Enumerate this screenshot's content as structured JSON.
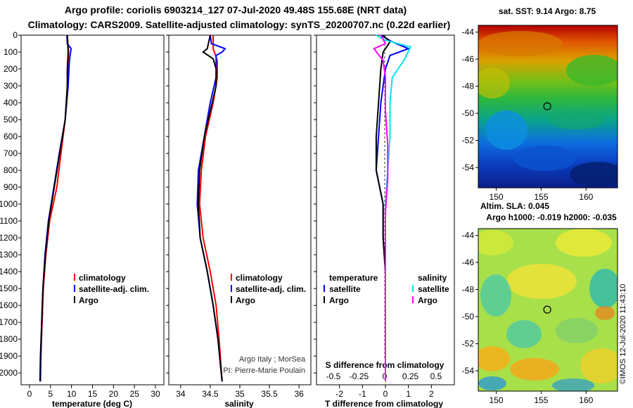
{
  "title_line1": "Argo profile: coriolis 6903214_127 07-Jul-2020 49.48S 155.68E (NRT data)",
  "title_line2": "Climatology: CARS2009. Satellite-adjusted climatology: synTS_20200707.nc (0.22d earlier)",
  "credit": "Argo Italy ; MorSea",
  "pi": "PI: Pierre-Marie Poulain",
  "stamp": "©IMOS 12-Jul-2020 11:43:10",
  "chart_data": [
    {
      "type": "line",
      "id": "temperature",
      "xlabel": "temperature (deg C)",
      "xlim": [
        -2,
        32
      ],
      "ylim": [
        2070,
        0
      ],
      "xticks": [
        0,
        5,
        10,
        15,
        20,
        25,
        30
      ],
      "yticks": [
        0,
        100,
        200,
        300,
        400,
        500,
        600,
        700,
        800,
        900,
        1000,
        1100,
        1200,
        1300,
        1400,
        1500,
        1600,
        1700,
        1800,
        1900,
        2000
      ],
      "legend": [
        "climatology",
        "satellite-adj. clim.",
        "Argo"
      ],
      "series": [
        {
          "name": "climatology",
          "color": "#ff0000",
          "points": [
            [
              9.0,
              0
            ],
            [
              9.3,
              100
            ],
            [
              9.0,
              300
            ],
            [
              8.5,
              500
            ],
            [
              7.5,
              700
            ],
            [
              6.5,
              900
            ],
            [
              4.8,
              1100
            ],
            [
              3.9,
              1300
            ],
            [
              3.3,
              1500
            ],
            [
              3.0,
              1700
            ],
            [
              2.7,
              1900
            ],
            [
              2.5,
              2050
            ]
          ]
        },
        {
          "name": "satellite-adj. clim.",
          "color": "#0000ff",
          "points": [
            [
              8.9,
              0
            ],
            [
              9.0,
              50
            ],
            [
              9.9,
              80
            ],
            [
              9.5,
              150
            ],
            [
              9.2,
              300
            ],
            [
              8.5,
              500
            ],
            [
              7.1,
              700
            ],
            [
              5.8,
              900
            ],
            [
              4.5,
              1100
            ],
            [
              3.7,
              1300
            ],
            [
              3.2,
              1500
            ],
            [
              2.9,
              1700
            ],
            [
              2.7,
              1900
            ],
            [
              2.6,
              2050
            ]
          ]
        },
        {
          "name": "Argo",
          "color": "#000000",
          "points": [
            [
              9.0,
              0
            ],
            [
              9.2,
              100
            ],
            [
              9.0,
              200
            ],
            [
              9.0,
              300
            ],
            [
              8.5,
              500
            ],
            [
              7.2,
              700
            ],
            [
              5.9,
              900
            ],
            [
              4.6,
              1100
            ],
            [
              3.8,
              1300
            ],
            [
              3.2,
              1500
            ],
            [
              2.9,
              1700
            ],
            [
              2.6,
              1900
            ],
            [
              2.5,
              2050
            ]
          ]
        }
      ]
    },
    {
      "type": "line",
      "id": "salinity",
      "xlabel": "salinity",
      "xlim": [
        33.8,
        36.2
      ],
      "ylim": [
        2070,
        0
      ],
      "xticks": [
        34,
        34.5,
        35,
        35.5,
        36
      ],
      "legend": [
        "climatology",
        "satellite-adj. clim.",
        "Argo"
      ],
      "series": [
        {
          "name": "climatology",
          "color": "#ff0000",
          "points": [
            [
              34.55,
              0
            ],
            [
              34.55,
              80
            ],
            [
              34.62,
              150
            ],
            [
              34.62,
              250
            ],
            [
              34.55,
              400
            ],
            [
              34.42,
              600
            ],
            [
              34.35,
              800
            ],
            [
              34.32,
              1000
            ],
            [
              34.38,
              1200
            ],
            [
              34.5,
              1400
            ],
            [
              34.6,
              1600
            ],
            [
              34.65,
              1800
            ],
            [
              34.7,
              2050
            ]
          ]
        },
        {
          "name": "satellite-adj. clim.",
          "color": "#0000ff",
          "points": [
            [
              34.5,
              0
            ],
            [
              34.52,
              50
            ],
            [
              34.75,
              80
            ],
            [
              34.7,
              100
            ],
            [
              34.6,
              120
            ],
            [
              34.6,
              250
            ],
            [
              34.5,
              400
            ],
            [
              34.4,
              600
            ],
            [
              34.3,
              800
            ],
            [
              34.28,
              1000
            ],
            [
              34.33,
              1200
            ],
            [
              34.45,
              1400
            ],
            [
              34.55,
              1600
            ],
            [
              34.63,
              1800
            ],
            [
              34.7,
              2050
            ]
          ]
        },
        {
          "name": "Argo",
          "color": "#000000",
          "points": [
            [
              34.5,
              0
            ],
            [
              34.45,
              80
            ],
            [
              34.38,
              100
            ],
            [
              34.55,
              140
            ],
            [
              34.6,
              200
            ],
            [
              34.6,
              300
            ],
            [
              34.5,
              450
            ],
            [
              34.4,
              600
            ],
            [
              34.32,
              800
            ],
            [
              34.3,
              1000
            ],
            [
              34.33,
              1200
            ],
            [
              34.45,
              1400
            ],
            [
              34.55,
              1600
            ],
            [
              34.63,
              1800
            ],
            [
              34.7,
              2050
            ]
          ]
        }
      ]
    },
    {
      "type": "line",
      "id": "difference",
      "xlabel": "T difference from climatology",
      "top_label": "S difference from climatology",
      "xlim": [
        -3,
        3
      ],
      "ylim": [
        2070,
        0
      ],
      "xticks": [
        -2,
        -1,
        0,
        1,
        2
      ],
      "top_ticks": [
        "-0.5",
        "-0.25",
        "0",
        "0.25",
        "0.5"
      ],
      "legend_left_title": "temperature",
      "legend_right_title": "salinity",
      "legend_left": [
        "satellite",
        "Argo"
      ],
      "legend_right": [
        "satellite",
        "Argo"
      ],
      "series": [
        {
          "name": "T satellite",
          "color": "#0000ff",
          "points": [
            [
              -0.2,
              0
            ],
            [
              0.3,
              40
            ],
            [
              1.0,
              80
            ],
            [
              0.2,
              120
            ],
            [
              0,
              200
            ],
            [
              -0.2,
              400
            ],
            [
              -0.3,
              600
            ],
            [
              -0.4,
              800
            ],
            [
              -0.1,
              1000
            ],
            [
              -0.1,
              1200
            ],
            [
              0,
              1400
            ],
            [
              0,
              1600
            ],
            [
              0,
              1800
            ],
            [
              0,
              2050
            ]
          ]
        },
        {
          "name": "T Argo",
          "color": "#000000",
          "points": [
            [
              -0.1,
              0
            ],
            [
              0.2,
              40
            ],
            [
              -0.1,
              100
            ],
            [
              -0.2,
              200
            ],
            [
              -0.3,
              400
            ],
            [
              -0.4,
              600
            ],
            [
              -0.4,
              800
            ],
            [
              -0.1,
              1000
            ],
            [
              -0.1,
              1200
            ],
            [
              0,
              1400
            ],
            [
              0,
              1600
            ],
            [
              0,
              1800
            ],
            [
              0,
              2050
            ]
          ]
        },
        {
          "name": "S satellite",
          "color": "#00e5ee",
          "points": [
            [
              -0.4,
              0
            ],
            [
              0,
              30
            ],
            [
              1.1,
              70
            ],
            [
              0.8,
              150
            ],
            [
              0.3,
              250
            ],
            [
              0.2,
              400
            ],
            [
              0.2,
              600
            ],
            [
              0.1,
              800
            ],
            [
              0,
              1000
            ],
            [
              0,
              1200
            ],
            [
              0,
              1500
            ],
            [
              0,
              2050
            ]
          ]
        },
        {
          "name": "S Argo",
          "color": "#ff00ff",
          "points": [
            [
              -0.2,
              0
            ],
            [
              0,
              50
            ],
            [
              -0.5,
              80
            ],
            [
              -0.1,
              150
            ],
            [
              0,
              250
            ],
            [
              0,
              450
            ],
            [
              0.1,
              650
            ],
            [
              0.1,
              850
            ],
            [
              0,
              1050
            ],
            [
              0,
              1300
            ],
            [
              0,
              1600
            ],
            [
              0,
              2050
            ]
          ]
        }
      ]
    }
  ],
  "maps": [
    {
      "title": "sat. SST: 9.14 Argo: 8.75",
      "lon_ticks": [
        "150",
        "155",
        "160"
      ],
      "lat_ticks": [
        "-44",
        "-46",
        "-48",
        "-50",
        "-52",
        "-54"
      ],
      "marker": {
        "lon": 155.68,
        "lat": -49.48
      }
    },
    {
      "title1": "Altim. SLA: 0.045",
      "title2": "Argo h1000: -0.019 h2000: -0.035",
      "lon_ticks": [
        "150",
        "155",
        "160"
      ],
      "lat_ticks": [
        "-44",
        "-46",
        "-48",
        "-50",
        "-52",
        "-54"
      ],
      "marker": {
        "lon": 155.68,
        "lat": -49.48
      }
    }
  ]
}
